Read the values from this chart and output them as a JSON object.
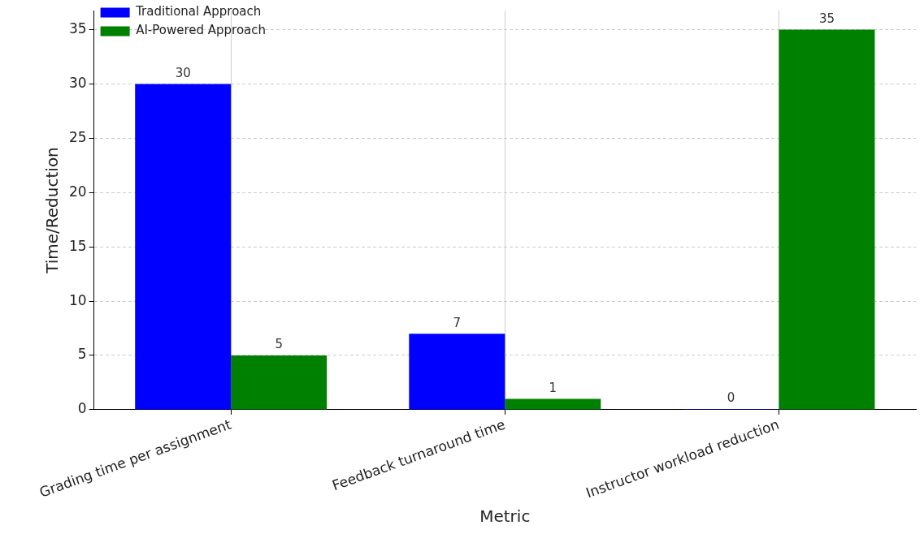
{
  "chart_data": {
    "type": "bar",
    "xlabel": "Metric",
    "ylabel": "Time/Reduction",
    "categories": [
      "Grading time per assignment",
      "Feedback turnaround time",
      "Instructor workload reduction"
    ],
    "series": [
      {
        "name": "Traditional Approach",
        "color": "#0000ff",
        "values": [
          30,
          7,
          0
        ]
      },
      {
        "name": "AI-Powered Approach",
        "color": "#008000",
        "values": [
          5,
          1,
          35
        ]
      }
    ],
    "ylim": [
      0,
      36.75
    ],
    "yticks": [
      0,
      5,
      10,
      15,
      20,
      25,
      30,
      35
    ],
    "grid": true,
    "legend": "top left",
    "data_labels": true
  }
}
